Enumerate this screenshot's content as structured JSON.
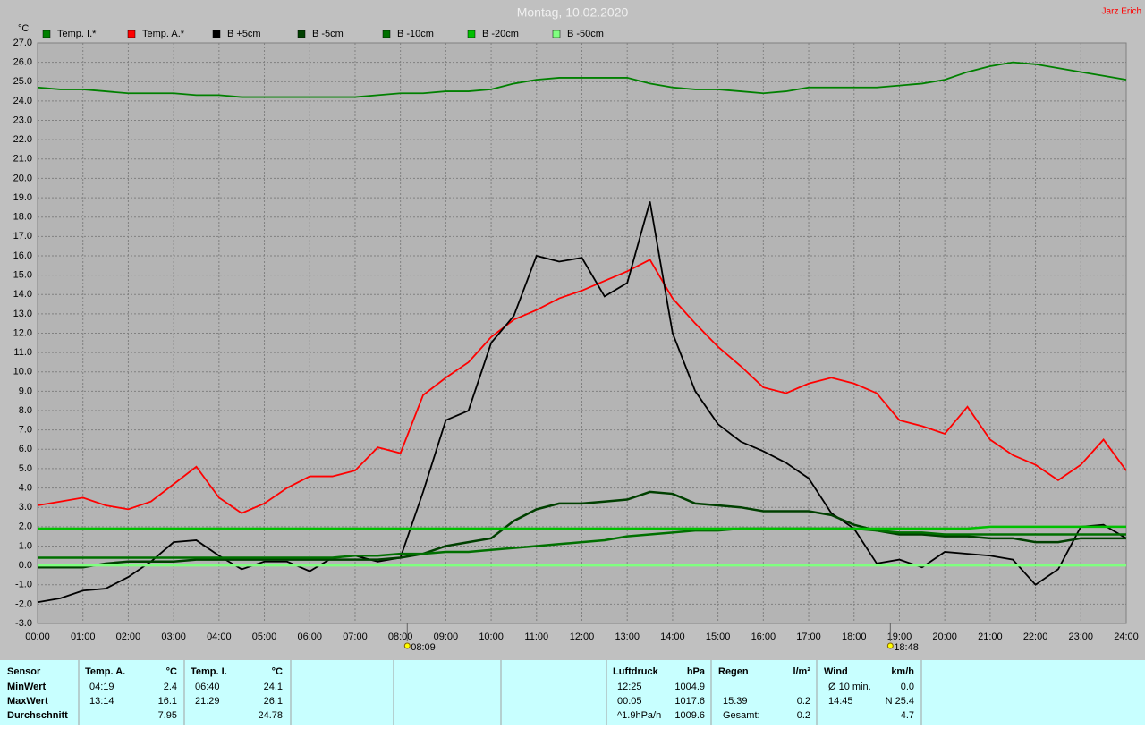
{
  "chart_data": {
    "type": "line",
    "title": "Montag, 10.02.2020",
    "author": "Jarz Erich",
    "y_label": "°C",
    "x": [
      0,
      0.5,
      1,
      1.5,
      2,
      2.5,
      3,
      3.5,
      4,
      4.5,
      5,
      5.5,
      6,
      6.5,
      7,
      7.5,
      8,
      8.5,
      9,
      9.5,
      10,
      10.5,
      11,
      11.5,
      12,
      12.5,
      13,
      13.5,
      14,
      14.5,
      15,
      15.5,
      16,
      16.5,
      17,
      17.5,
      18,
      18.5,
      19,
      19.5,
      20,
      20.5,
      21,
      21.5,
      22,
      22.5,
      23,
      23.5,
      24
    ],
    "xlim": [
      0,
      24
    ],
    "xticks": [
      {
        "value": 0,
        "label": "00:00"
      },
      {
        "value": 1,
        "label": "01:00"
      },
      {
        "value": 2,
        "label": "02:00"
      },
      {
        "value": 3,
        "label": "03:00"
      },
      {
        "value": 4,
        "label": "04:00"
      },
      {
        "value": 5,
        "label": "05:00"
      },
      {
        "value": 6,
        "label": "06:00"
      },
      {
        "value": 7,
        "label": "07:00"
      },
      {
        "value": 8,
        "label": "08:00"
      },
      {
        "value": 9,
        "label": "09:00"
      },
      {
        "value": 10,
        "label": "10:00"
      },
      {
        "value": 11,
        "label": "11:00"
      },
      {
        "value": 12,
        "label": "12:00"
      },
      {
        "value": 13,
        "label": "13:00"
      },
      {
        "value": 14,
        "label": "14:00"
      },
      {
        "value": 15,
        "label": "15:00"
      },
      {
        "value": 16,
        "label": "16:00"
      },
      {
        "value": 17,
        "label": "17:00"
      },
      {
        "value": 18,
        "label": "18:00"
      },
      {
        "value": 19,
        "label": "19:00"
      },
      {
        "value": 20,
        "label": "20:00"
      },
      {
        "value": 21,
        "label": "21:00"
      },
      {
        "value": 22,
        "label": "22:00"
      },
      {
        "value": 23,
        "label": "23:00"
      },
      {
        "value": 24,
        "label": "24:00"
      }
    ],
    "ylim": [
      -3,
      27
    ],
    "yticks": [
      {
        "value": -3,
        "label": "-3.0"
      },
      {
        "value": -2,
        "label": "-2.0"
      },
      {
        "value": -1,
        "label": "-1.0"
      },
      {
        "value": 0,
        "label": "0.0"
      },
      {
        "value": 1,
        "label": "1.0"
      },
      {
        "value": 2,
        "label": "2.0"
      },
      {
        "value": 3,
        "label": "3.0"
      },
      {
        "value": 4,
        "label": "4.0"
      },
      {
        "value": 5,
        "label": "5.0"
      },
      {
        "value": 6,
        "label": "6.0"
      },
      {
        "value": 7,
        "label": "7.0"
      },
      {
        "value": 8,
        "label": "8.0"
      },
      {
        "value": 9,
        "label": "9.0"
      },
      {
        "value": 10,
        "label": "10.0"
      },
      {
        "value": 11,
        "label": "11.0"
      },
      {
        "value": 12,
        "label": "12.0"
      },
      {
        "value": 13,
        "label": "13.0"
      },
      {
        "value": 14,
        "label": "14.0"
      },
      {
        "value": 15,
        "label": "15.0"
      },
      {
        "value": 16,
        "label": "16.0"
      },
      {
        "value": 17,
        "label": "17.0"
      },
      {
        "value": 18,
        "label": "18.0"
      },
      {
        "value": 19,
        "label": "19.0"
      },
      {
        "value": 20,
        "label": "20.0"
      },
      {
        "value": 21,
        "label": "21.0"
      },
      {
        "value": 22,
        "label": "22.0"
      },
      {
        "value": 23,
        "label": "23.0"
      },
      {
        "value": 24,
        "label": "24.0"
      },
      {
        "value": 25,
        "label": "25.0"
      },
      {
        "value": 26,
        "label": "26.0"
      },
      {
        "value": 27,
        "label": "27.0"
      }
    ],
    "grid": true,
    "series": [
      {
        "name": "Temp. I.*",
        "color": "#008000",
        "values": [
          24.7,
          24.6,
          24.6,
          24.5,
          24.4,
          24.4,
          24.4,
          24.3,
          24.3,
          24.2,
          24.2,
          24.2,
          24.2,
          24.2,
          24.2,
          24.3,
          24.4,
          24.4,
          24.5,
          24.5,
          24.6,
          24.9,
          25.1,
          25.2,
          25.2,
          25.2,
          25.2,
          24.9,
          24.7,
          24.6,
          24.6,
          24.5,
          24.4,
          24.5,
          24.7,
          24.7,
          24.7,
          24.7,
          24.8,
          24.9,
          25.1,
          25.5,
          25.8,
          26.0,
          25.9,
          25.7,
          25.5,
          25.3,
          25.1
        ]
      },
      {
        "name": "Temp. A.*",
        "color": "#ff0000",
        "values": [
          3.1,
          3.3,
          3.5,
          3.1,
          2.9,
          3.3,
          4.2,
          5.1,
          3.5,
          2.7,
          3.2,
          4.0,
          4.6,
          4.6,
          4.9,
          6.1,
          5.8,
          8.8,
          9.7,
          10.5,
          11.8,
          12.7,
          13.2,
          13.8,
          14.2,
          14.7,
          15.2,
          15.8,
          13.8,
          12.5,
          11.3,
          10.3,
          9.2,
          8.9,
          9.4,
          9.7,
          9.4,
          8.9,
          7.5,
          7.2,
          6.8,
          8.2,
          6.5,
          5.7,
          5.2,
          4.4,
          5.2,
          6.5,
          4.9
        ]
      },
      {
        "name": "B +5cm",
        "color": "#000000",
        "values": [
          -1.9,
          -1.7,
          -1.3,
          -1.2,
          -0.6,
          0.2,
          1.2,
          1.3,
          0.5,
          -0.2,
          0.2,
          0.2,
          -0.3,
          0.4,
          0.5,
          0.2,
          0.4,
          3.8,
          7.5,
          8.0,
          11.5,
          12.9,
          16.0,
          15.7,
          15.9,
          13.9,
          14.6,
          18.8,
          12.0,
          9.0,
          7.3,
          6.4,
          5.9,
          5.3,
          4.5,
          2.7,
          1.9,
          0.1,
          0.3,
          -0.1,
          0.7,
          0.6,
          0.5,
          0.3,
          -1.0,
          -0.2,
          2.0,
          2.1,
          1.4
        ]
      },
      {
        "name": "B -5cm",
        "color": "#004000",
        "values": [
          -0.1,
          -0.1,
          -0.1,
          0.1,
          0.2,
          0.2,
          0.2,
          0.3,
          0.3,
          0.3,
          0.3,
          0.3,
          0.3,
          0.3,
          0.3,
          0.3,
          0.4,
          0.6,
          1.0,
          1.2,
          1.4,
          2.3,
          2.9,
          3.2,
          3.2,
          3.3,
          3.4,
          3.8,
          3.7,
          3.2,
          3.1,
          3.0,
          2.8,
          2.8,
          2.8,
          2.6,
          2.1,
          1.8,
          1.6,
          1.6,
          1.5,
          1.5,
          1.4,
          1.4,
          1.2,
          1.2,
          1.4,
          1.4,
          1.4
        ]
      },
      {
        "name": "B -10cm",
        "color": "#007000",
        "values": [
          0.4,
          0.4,
          0.4,
          0.4,
          0.4,
          0.4,
          0.4,
          0.4,
          0.4,
          0.4,
          0.4,
          0.4,
          0.4,
          0.4,
          0.5,
          0.5,
          0.6,
          0.6,
          0.7,
          0.7,
          0.8,
          0.9,
          1.0,
          1.1,
          1.2,
          1.3,
          1.5,
          1.6,
          1.7,
          1.8,
          1.8,
          1.9,
          1.9,
          1.9,
          1.9,
          1.9,
          1.9,
          1.8,
          1.7,
          1.7,
          1.6,
          1.6,
          1.6,
          1.6,
          1.6,
          1.6,
          1.6,
          1.6,
          1.6
        ]
      },
      {
        "name": "B -20cm",
        "color": "#00c000",
        "values": [
          1.9,
          1.9,
          1.9,
          1.9,
          1.9,
          1.9,
          1.9,
          1.9,
          1.9,
          1.9,
          1.9,
          1.9,
          1.9,
          1.9,
          1.9,
          1.9,
          1.9,
          1.9,
          1.9,
          1.9,
          1.9,
          1.9,
          1.9,
          1.9,
          1.9,
          1.9,
          1.9,
          1.9,
          1.9,
          1.9,
          1.9,
          1.9,
          1.9,
          1.9,
          1.9,
          1.9,
          1.9,
          1.9,
          1.9,
          1.9,
          1.9,
          1.9,
          2.0,
          2.0,
          2.0,
          2.0,
          2.0,
          2.0,
          2.0
        ]
      },
      {
        "name": "B -50cm",
        "color": "#80ff80",
        "values": [
          0,
          0,
          0,
          0,
          0,
          0,
          0,
          0,
          0,
          0,
          0,
          0,
          0,
          0,
          0,
          0,
          0,
          0,
          0,
          0,
          0,
          0,
          0,
          0,
          0,
          0,
          0,
          0,
          0,
          0,
          0,
          0,
          0,
          0,
          0,
          0,
          0,
          0,
          0,
          0,
          0,
          0,
          0,
          0,
          0,
          0,
          0,
          0,
          0
        ]
      }
    ],
    "sun_markers": [
      {
        "value": 8.15,
        "label": "08:09"
      },
      {
        "value": 18.8,
        "label": "18:48"
      }
    ]
  },
  "stats_table": {
    "headers": [
      "Sensor",
      "Temp. A.",
      "°C",
      "Temp. I.",
      "°C",
      "Luftdruck",
      "hPa",
      "Regen",
      "l/m²",
      "Wind",
      "km/h"
    ],
    "rows": [
      [
        "MinWert",
        "04:19",
        "2.4",
        "06:40",
        "24.1",
        "12:25",
        "1004.9",
        null,
        null,
        "Ø 10 min.",
        "0.0"
      ],
      [
        "MaxWert",
        "13:14",
        "16.1",
        "21:29",
        "26.1",
        "00:05",
        "1017.6",
        "15:39",
        "0.2",
        "14:45",
        "N 25.4"
      ],
      [
        "Durchschnitt",
        null,
        "7.95",
        null,
        "24.78",
        "^1.9hPa/h",
        "1009.6",
        "Gesamt:",
        "0.2",
        null,
        "4.7"
      ]
    ]
  }
}
